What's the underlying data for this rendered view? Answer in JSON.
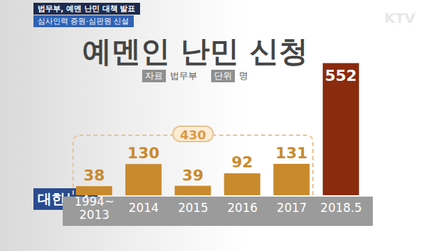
{
  "chart_data": {
    "type": "bar",
    "title": "예멘인 난민 신청",
    "header": [
      "법무부, 예멘 난민 대책 발표",
      "심사인력 증원·심판원 신설"
    ],
    "source": {
      "label": "자료",
      "text": "법무부"
    },
    "unit": {
      "label": "단위",
      "text": "명"
    },
    "branding": [
      "KTV",
      "대한뉴스"
    ],
    "categories": [
      "1994~2013",
      "2014",
      "2015",
      "2016",
      "2017",
      "2018.5"
    ],
    "values": [
      38,
      130,
      39,
      92,
      131,
      552
    ],
    "colors": [
      "#c98a2e",
      "#c98a2e",
      "#c98a2e",
      "#c98a2e",
      "#c98a2e",
      "#8b2b0e"
    ],
    "ylim": [
      0,
      600
    ],
    "grid": false,
    "data_labels": true,
    "tick_labels": "x",
    "annotations": [
      {
        "text": "430"
      }
    ]
  }
}
